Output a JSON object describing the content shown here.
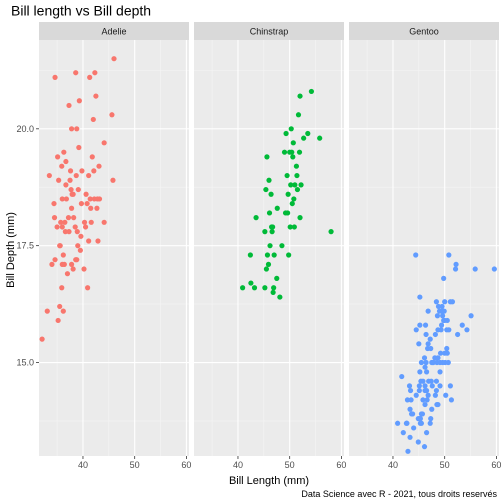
{
  "chart_data": {
    "type": "scatter",
    "title": "Bill length vs Bill depth",
    "xlabel": "Bill Length (mm)",
    "ylabel": "Bill Depth (mm)",
    "caption": "Data Science avec R - 2021, tous droits reservés",
    "xlim": [
      31.5,
      60.5
    ],
    "ylim": [
      13.0,
      21.9
    ],
    "x_ticks": [
      40,
      50,
      60
    ],
    "x_tick_labels": [
      "40",
      "50",
      "60"
    ],
    "y_ticks": [
      15.0,
      17.5,
      20.0
    ],
    "y_tick_labels": [
      "15.0",
      "17.5",
      "20.0"
    ],
    "grid": true,
    "legend": "none",
    "facets": [
      {
        "name": "Adelie",
        "color": "#F8766D",
        "points": [
          [
            32.1,
            15.5
          ],
          [
            33.1,
            16.1
          ],
          [
            33.5,
            19.0
          ],
          [
            34.0,
            17.1
          ],
          [
            34.4,
            18.4
          ],
          [
            34.5,
            18.1
          ],
          [
            34.6,
            21.1
          ],
          [
            34.6,
            17.2
          ],
          [
            35.0,
            17.9
          ],
          [
            35.1,
            19.4
          ],
          [
            35.2,
            15.9
          ],
          [
            35.3,
            18.9
          ],
          [
            35.5,
            16.2
          ],
          [
            35.5,
            17.5
          ],
          [
            35.6,
            17.5
          ],
          [
            35.7,
            18.0
          ],
          [
            35.9,
            16.6
          ],
          [
            35.9,
            19.2
          ],
          [
            36.0,
            18.5
          ],
          [
            36.0,
            17.9
          ],
          [
            36.0,
            17.1
          ],
          [
            36.2,
            17.3
          ],
          [
            36.2,
            16.1
          ],
          [
            36.3,
            19.5
          ],
          [
            36.4,
            17.1
          ],
          [
            36.5,
            18.0
          ],
          [
            36.6,
            17.8
          ],
          [
            36.7,
            19.3
          ],
          [
            36.7,
            18.8
          ],
          [
            36.8,
            18.5
          ],
          [
            37.0,
            16.9
          ],
          [
            37.2,
            18.1
          ],
          [
            37.3,
            17.8
          ],
          [
            37.3,
            20.5
          ],
          [
            37.5,
            18.9
          ],
          [
            37.6,
            19.1
          ],
          [
            37.7,
            18.7
          ],
          [
            37.8,
            18.3
          ],
          [
            37.8,
            17.1
          ],
          [
            37.8,
            20.0
          ],
          [
            37.9,
            18.6
          ],
          [
            38.1,
            17.0
          ],
          [
            38.1,
            18.6
          ],
          [
            38.2,
            18.1
          ],
          [
            38.5,
            17.9
          ],
          [
            38.6,
            21.2
          ],
          [
            38.6,
            17.2
          ],
          [
            38.7,
            19.0
          ],
          [
            38.8,
            17.2
          ],
          [
            38.8,
            20.0
          ],
          [
            38.9,
            17.8
          ],
          [
            39.0,
            17.5
          ],
          [
            39.1,
            18.7
          ],
          [
            39.2,
            19.6
          ],
          [
            39.3,
            20.6
          ],
          [
            39.5,
            17.4
          ],
          [
            39.6,
            17.7
          ],
          [
            39.7,
            18.4
          ],
          [
            39.8,
            19.1
          ],
          [
            40.2,
            17.0
          ],
          [
            40.3,
            18.0
          ],
          [
            40.5,
            17.9
          ],
          [
            40.6,
            18.6
          ],
          [
            40.8,
            18.4
          ],
          [
            40.9,
            16.6
          ],
          [
            41.1,
            17.6
          ],
          [
            41.1,
            19.0
          ],
          [
            41.3,
            21.1
          ],
          [
            41.4,
            18.5
          ],
          [
            41.5,
            18.3
          ],
          [
            41.6,
            18.0
          ],
          [
            41.8,
            19.4
          ],
          [
            42.0,
            20.2
          ],
          [
            42.1,
            19.1
          ],
          [
            42.2,
            18.5
          ],
          [
            42.3,
            21.2
          ],
          [
            42.5,
            20.7
          ],
          [
            42.7,
            18.3
          ],
          [
            42.8,
            18.5
          ],
          [
            42.9,
            17.6
          ],
          [
            43.1,
            19.2
          ],
          [
            43.2,
            18.5
          ],
          [
            44.1,
            19.7
          ],
          [
            44.1,
            18.0
          ],
          [
            45.6,
            20.3
          ],
          [
            45.8,
            18.9
          ],
          [
            46.0,
            21.5
          ]
        ]
      },
      {
        "name": "Chinstrap",
        "color": "#00BA38",
        "points": [
          [
            40.9,
            16.6
          ],
          [
            42.4,
            17.3
          ],
          [
            42.5,
            16.7
          ],
          [
            43.2,
            16.6
          ],
          [
            43.5,
            18.1
          ],
          [
            45.2,
            16.6
          ],
          [
            45.2,
            17.8
          ],
          [
            45.4,
            18.7
          ],
          [
            45.5,
            17.0
          ],
          [
            45.6,
            19.4
          ],
          [
            45.7,
            17.3
          ],
          [
            45.9,
            17.1
          ],
          [
            46.0,
            18.9
          ],
          [
            46.1,
            18.2
          ],
          [
            46.2,
            17.5
          ],
          [
            46.4,
            18.6
          ],
          [
            46.5,
            17.9
          ],
          [
            46.6,
            17.8
          ],
          [
            46.7,
            17.9
          ],
          [
            46.8,
            16.5
          ],
          [
            46.9,
            16.6
          ],
          [
            47.0,
            17.3
          ],
          [
            47.5,
            16.8
          ],
          [
            47.6,
            18.3
          ],
          [
            48.1,
            16.4
          ],
          [
            48.5,
            17.5
          ],
          [
            49.0,
            19.5
          ],
          [
            49.2,
            18.2
          ],
          [
            49.3,
            19.9
          ],
          [
            49.5,
            19.0
          ],
          [
            49.6,
            18.2
          ],
          [
            49.7,
            18.6
          ],
          [
            49.8,
            17.3
          ],
          [
            50.0,
            19.5
          ],
          [
            50.1,
            17.9
          ],
          [
            50.2,
            18.8
          ],
          [
            50.3,
            20.0
          ],
          [
            50.4,
            19.5
          ],
          [
            50.5,
            18.4
          ],
          [
            50.6,
            19.4
          ],
          [
            50.7,
            19.7
          ],
          [
            50.8,
            18.5
          ],
          [
            50.9,
            17.9
          ],
          [
            51.0,
            18.8
          ],
          [
            51.3,
            19.2
          ],
          [
            51.4,
            19.0
          ],
          [
            51.5,
            18.7
          ],
          [
            51.7,
            20.3
          ],
          [
            51.9,
            19.5
          ],
          [
            52.0,
            18.1
          ],
          [
            52.0,
            20.7
          ],
          [
            52.2,
            18.8
          ],
          [
            52.7,
            19.8
          ],
          [
            53.5,
            19.9
          ],
          [
            54.2,
            20.8
          ],
          [
            55.8,
            19.8
          ],
          [
            58.0,
            17.8
          ]
        ]
      },
      {
        "name": "Gentoo",
        "color": "#619CFF",
        "points": [
          [
            40.9,
            13.7
          ],
          [
            41.7,
            14.7
          ],
          [
            42.0,
            13.5
          ],
          [
            42.6,
            13.7
          ],
          [
            42.7,
            13.7
          ],
          [
            42.8,
            14.2
          ],
          [
            42.9,
            13.1
          ],
          [
            43.2,
            14.5
          ],
          [
            43.3,
            13.4
          ],
          [
            43.3,
            14.0
          ],
          [
            43.4,
            14.4
          ],
          [
            43.5,
            14.2
          ],
          [
            43.6,
            13.9
          ],
          [
            43.8,
            13.9
          ],
          [
            44.0,
            13.6
          ],
          [
            44.4,
            17.3
          ],
          [
            44.5,
            14.3
          ],
          [
            44.5,
            15.7
          ],
          [
            44.9,
            13.8
          ],
          [
            44.9,
            13.3
          ],
          [
            45.0,
            15.4
          ],
          [
            45.1,
            14.5
          ],
          [
            45.1,
            14.4
          ],
          [
            45.2,
            13.8
          ],
          [
            45.2,
            14.8
          ],
          [
            45.2,
            15.8
          ],
          [
            45.2,
            16.4
          ],
          [
            45.3,
            13.7
          ],
          [
            45.3,
            13.8
          ],
          [
            45.4,
            14.6
          ],
          [
            45.5,
            13.7
          ],
          [
            45.5,
            13.9
          ],
          [
            45.5,
            15.0
          ],
          [
            45.7,
            13.9
          ],
          [
            45.8,
            14.2
          ],
          [
            45.8,
            14.6
          ],
          [
            46.1,
            13.2
          ],
          [
            46.1,
            15.1
          ],
          [
            46.2,
            14.1
          ],
          [
            46.2,
            14.4
          ],
          [
            46.2,
            14.5
          ],
          [
            46.2,
            14.9
          ],
          [
            46.3,
            15.8
          ],
          [
            46.4,
            15.0
          ],
          [
            46.4,
            15.6
          ],
          [
            46.5,
            13.5
          ],
          [
            46.5,
            14.4
          ],
          [
            46.5,
            14.8
          ],
          [
            46.6,
            14.2
          ],
          [
            46.7,
            15.3
          ],
          [
            46.8,
            14.3
          ],
          [
            46.8,
            15.4
          ],
          [
            46.8,
            16.1
          ],
          [
            46.9,
            14.6
          ],
          [
            47.2,
            13.7
          ],
          [
            47.2,
            15.5
          ],
          [
            47.3,
            13.8
          ],
          [
            47.3,
            15.3
          ],
          [
            47.4,
            14.6
          ],
          [
            47.5,
            14.0
          ],
          [
            47.5,
            15.0
          ],
          [
            47.6,
            14.5
          ],
          [
            47.7,
            15.0
          ],
          [
            47.8,
            15.0
          ],
          [
            48.1,
            15.1
          ],
          [
            48.2,
            14.3
          ],
          [
            48.2,
            15.6
          ],
          [
            48.4,
            14.4
          ],
          [
            48.4,
            14.6
          ],
          [
            48.4,
            16.3
          ],
          [
            48.5,
            14.1
          ],
          [
            48.5,
            15.0
          ],
          [
            48.6,
            16.0
          ],
          [
            48.7,
            14.1
          ],
          [
            48.7,
            15.1
          ],
          [
            48.7,
            15.7
          ],
          [
            48.8,
            16.2
          ],
          [
            49.0,
            16.1
          ],
          [
            49.1,
            14.5
          ],
          [
            49.1,
            14.8
          ],
          [
            49.1,
            15.0
          ],
          [
            49.2,
            15.2
          ],
          [
            49.3,
            15.7
          ],
          [
            49.4,
            15.8
          ],
          [
            49.5,
            16.1
          ],
          [
            49.5,
            16.2
          ],
          [
            49.6,
            15.0
          ],
          [
            49.6,
            16.0
          ],
          [
            49.8,
            15.9
          ],
          [
            49.8,
            16.8
          ],
          [
            49.9,
            16.1
          ],
          [
            50.0,
            15.2
          ],
          [
            50.0,
            15.9
          ],
          [
            50.0,
            16.3
          ],
          [
            50.1,
            15.0
          ],
          [
            50.2,
            14.3
          ],
          [
            50.4,
            15.3
          ],
          [
            50.4,
            15.7
          ],
          [
            50.5,
            15.2
          ],
          [
            50.5,
            15.9
          ],
          [
            50.7,
            15.0
          ],
          [
            50.8,
            15.7
          ],
          [
            50.8,
            17.3
          ],
          [
            51.1,
            14.5
          ],
          [
            51.1,
            16.3
          ],
          [
            51.3,
            14.2
          ],
          [
            51.5,
            16.3
          ],
          [
            52.1,
            17.0
          ],
          [
            52.2,
            17.1
          ],
          [
            52.5,
            15.6
          ],
          [
            53.4,
            15.8
          ],
          [
            54.3,
            15.7
          ],
          [
            55.1,
            16.0
          ],
          [
            55.9,
            17.0
          ],
          [
            59.6,
            17.0
          ]
        ]
      }
    ]
  }
}
